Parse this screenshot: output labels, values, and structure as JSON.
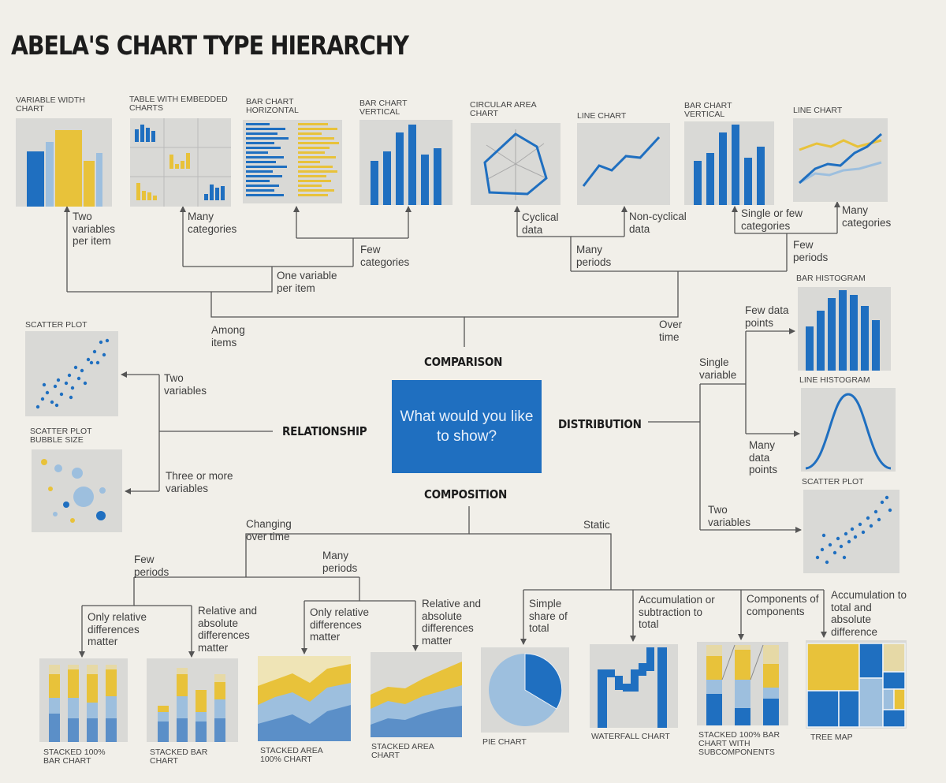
{
  "title": "ABELA'S CHART TYPE HIERARCHY",
  "center_question": "What would you like to show?",
  "categories": {
    "comparison": "COMPARISON",
    "relationship": "RELATIONSHIP",
    "distribution": "DISTRIBUTION",
    "composition": "COMPOSITION"
  },
  "chart_labels": {
    "variable_width": "VARIABLE WIDTH CHART",
    "table_embedded": "TABLE WITH EMBEDDED CHARTS",
    "bar_horizontal": "BAR CHART HORIZONTAL",
    "bar_vertical_1": "BAR CHART VERTICAL",
    "circular_area": "CIRCULAR AREA CHART",
    "line_chart_1": "LINE CHART",
    "bar_vertical_2": "BAR CHART VERTICAL",
    "line_chart_2": "LINE CHART",
    "scatter_rel": "SCATTER PLOT",
    "bubble": "SCATTER PLOT BUBBLE SIZE",
    "bar_histogram": "BAR HISTOGRAM",
    "line_histogram": "LINE HISTOGRAM",
    "scatter_dist": "SCATTER PLOT",
    "stacked_100_bar": "STACKED 100% BAR CHART",
    "stacked_bar": "STACKED BAR CHART",
    "stacked_area_100": "STACKED AREA 100% CHART",
    "stacked_area": "STACKED AREA CHART",
    "pie": "PIE CHART",
    "waterfall": "WATERFALL CHART",
    "stacked_sub": "STACKED 100% BAR CHART WITH SUBCOMPONENTS",
    "tree_map": "TREE MAP"
  },
  "notes": {
    "two_vars_per_item": "Two variables per item",
    "many_categories_1": "Many categories",
    "few_categories_1": "Few categories",
    "one_var_per_item": "One variable per item",
    "among_items": "Among items",
    "cyclical": "Cyclical data",
    "non_cyclical": "Non-cyclical data",
    "many_periods_1": "Many periods",
    "single_few_cat": "Single or few categories",
    "many_categories_2": "Many categories",
    "few_periods_1": "Few periods",
    "over_time": "Over time",
    "two_variables_rel": "Two variables",
    "three_more": "Three or more variables",
    "few_data_points": "Few data points",
    "single_variable": "Single variable",
    "many_data_points": "Many data points",
    "two_variables_dist": "Two variables",
    "changing_over_time": "Changing over time",
    "static": "Static",
    "few_periods_2": "Few periods",
    "many_periods_2": "Many periods",
    "only_rel_1": "Only relative differences matter",
    "rel_abs_1": "Relative and absolute differences matter",
    "only_rel_2": "Only relative differences matter",
    "rel_abs_2": "Relative and absolute differences matter",
    "simple_share": "Simple share of total",
    "accum_sub": "Accumulation or subtraction to total",
    "components": "Components of components",
    "accum_total": "Accumulation to total and absolute difference matters"
  },
  "colors": {
    "blue": "#1f6fc0",
    "light_blue": "#9dbfde",
    "yellow": "#e8c23a",
    "thumb_bg": "#d9d9d6",
    "line": "#555555"
  }
}
